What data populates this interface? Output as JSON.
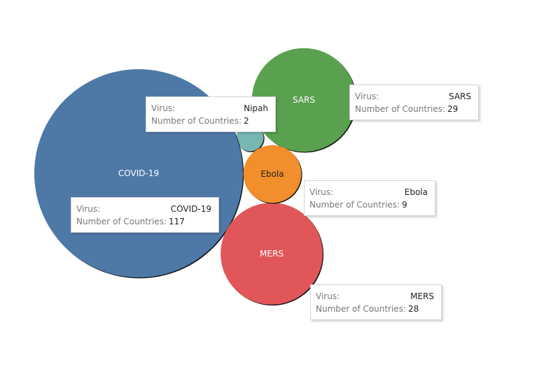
{
  "chart_data": {
    "type": "bubble",
    "size_field": "Number of Countries",
    "points": [
      {
        "virus": "COVID-19",
        "countries": 117,
        "color": "#4e79a7",
        "label_color": "#ffffff"
      },
      {
        "virus": "SARS",
        "countries": 29,
        "color": "#59a14f",
        "label_color": "#ffffff"
      },
      {
        "virus": "MERS",
        "countries": 28,
        "color": "#e15759",
        "label_color": "#ffffff"
      },
      {
        "virus": "Ebola",
        "countries": 9,
        "color": "#f28e2b",
        "label_color": "#222222"
      },
      {
        "virus": "Nipah",
        "countries": 2,
        "color": "#76b7b2",
        "label_color": "#ffffff",
        "label_hidden": true
      }
    ]
  },
  "tooltip": {
    "virus_key": "Virus:",
    "count_key": "Number of Countries:"
  },
  "tooltips": [
    {
      "virus": "Nipah",
      "countries": "2"
    },
    {
      "virus": "SARS",
      "countries": "29"
    },
    {
      "virus": "COVID-19",
      "countries": "117"
    },
    {
      "virus": "Ebola",
      "countries": "9"
    },
    {
      "virus": "MERS",
      "countries": "28"
    }
  ]
}
